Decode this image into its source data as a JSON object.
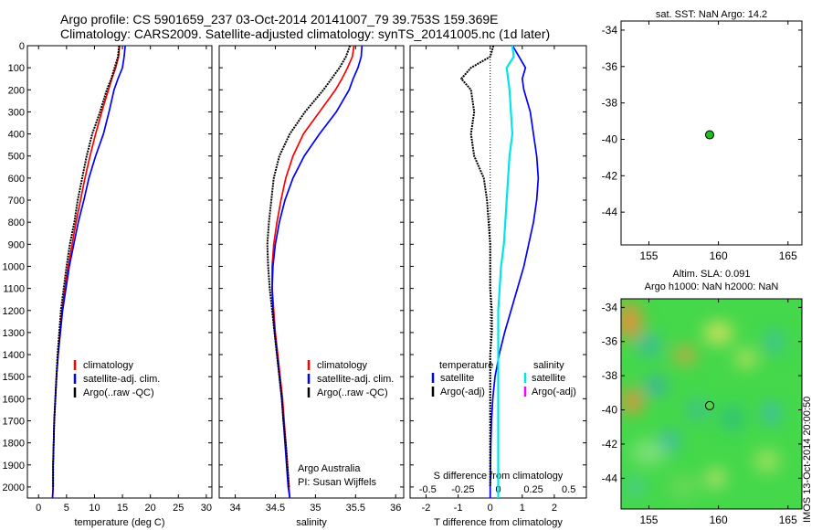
{
  "header": {
    "line1": "Argo profile: CS 5901659_237 03-Oct-2014 20141007_79 39.753S 159.369E",
    "line2": "Climatology: CARS2009. Satellite-adjusted climatology: synTS_20141005.nc (1d later)"
  },
  "colors": {
    "climatology": "#ff0000",
    "satellite": "#0000ff",
    "argo": "#000000",
    "cyan": "#00e5e5",
    "magenta": "#ff00ff",
    "dot": "#22bb22"
  },
  "chart_data": [
    {
      "type": "line",
      "xlabel": "temperature (deg C)",
      "xlim": [
        -2,
        31
      ],
      "xticks": [
        "0",
        "5",
        "10",
        "15",
        "20",
        "25",
        "30"
      ],
      "ylim": [
        0,
        2050
      ],
      "yticks": [
        "0",
        "100",
        "200",
        "300",
        "400",
        "500",
        "600",
        "700",
        "800",
        "900",
        "1000",
        "1100",
        "1200",
        "1300",
        "1400",
        "1500",
        "1600",
        "1700",
        "1800",
        "1900",
        "2000"
      ],
      "depth": [
        0,
        50,
        100,
        150,
        200,
        300,
        400,
        500,
        600,
        700,
        800,
        900,
        1000,
        1100,
        1200,
        1300,
        1400,
        1500,
        1600,
        1700,
        1800,
        1900,
        2000,
        2050
      ],
      "series": [
        {
          "name": "climatology",
          "color": "#ff0000",
          "x": [
            14.5,
            14.3,
            13.8,
            13.1,
            12.5,
            11.3,
            10.2,
            9.2,
            8.3,
            7.5,
            6.7,
            6.0,
            5.3,
            4.7,
            4.2,
            3.8,
            3.5,
            3.2,
            3.0,
            2.8,
            2.7,
            2.6,
            2.6,
            2.5
          ]
        },
        {
          "name": "satellite-adj. clim.",
          "color": "#0000ff",
          "x": [
            15.5,
            15.3,
            15.0,
            14.2,
            13.5,
            12.6,
            11.6,
            10.2,
            9.0,
            8.1,
            7.1,
            6.3,
            5.5,
            4.9,
            4.3,
            3.9,
            3.5,
            3.2,
            3.0,
            2.8,
            2.7,
            2.6,
            2.6,
            2.5
          ]
        },
        {
          "name": "Argo(..raw -QC)",
          "color": "#000000",
          "x": [
            14.4,
            14.2,
            13.6,
            13.0,
            12.2,
            11.0,
            9.6,
            8.6,
            7.8,
            7.0,
            6.4,
            5.6,
            5.0,
            4.5,
            4.0,
            3.7,
            3.4,
            3.2,
            3.0,
            2.8,
            2.7,
            2.6,
            2.6,
            null
          ]
        }
      ],
      "legend": [
        "climatology",
        "satellite-adj. clim.",
        "Argo(..raw -QC)"
      ]
    },
    {
      "type": "line",
      "xlabel": "salinity",
      "xlim": [
        33.8,
        36.1
      ],
      "xticks": [
        "34",
        "34.5",
        "35",
        "35.5",
        "36"
      ],
      "ylim": [
        0,
        2050
      ],
      "depth": [
        0,
        50,
        100,
        150,
        200,
        300,
        400,
        500,
        600,
        700,
        800,
        900,
        1000,
        1100,
        1200,
        1300,
        1400,
        1500,
        1600,
        1700,
        1800,
        1900,
        2000,
        2050
      ],
      "series": [
        {
          "name": "climatology",
          "color": "#ff0000",
          "x": [
            35.48,
            35.46,
            35.4,
            35.33,
            35.25,
            35.05,
            34.85,
            34.72,
            34.63,
            34.57,
            34.52,
            34.48,
            34.46,
            34.46,
            34.48,
            34.5,
            34.53,
            34.56,
            34.59,
            34.61,
            34.63,
            34.65,
            34.67,
            34.68
          ]
        },
        {
          "name": "satellite-adj. clim.",
          "color": "#0000ff",
          "x": [
            35.58,
            35.57,
            35.53,
            35.47,
            35.42,
            35.26,
            35.05,
            34.86,
            34.72,
            34.62,
            34.55,
            34.5,
            34.47,
            34.46,
            34.47,
            34.49,
            34.52,
            34.55,
            34.58,
            34.6,
            34.62,
            34.64,
            34.66,
            34.68
          ]
        },
        {
          "name": "Argo(..raw -QC)",
          "color": "#000000",
          "x": [
            35.43,
            35.38,
            35.3,
            35.2,
            35.1,
            34.87,
            34.68,
            34.55,
            34.48,
            34.45,
            34.42,
            34.4,
            34.41,
            34.43,
            34.46,
            34.49,
            34.52,
            34.55,
            34.58,
            34.6,
            34.63,
            34.65,
            34.67,
            null
          ]
        }
      ],
      "legend": [
        "climatology",
        "satellite-adj. clim.",
        "Argo(..raw -QC)"
      ],
      "annotation": [
        "Argo Australia",
        "PI: Susan Wijffels"
      ]
    },
    {
      "type": "line",
      "xlabel": "T difference from climatology",
      "xlabel_top": "S difference from climatology",
      "xlim": [
        -2.5,
        3
      ],
      "xticks": [
        "-2",
        "-1",
        "0",
        "1",
        "2"
      ],
      "xticks_s": [
        "-0.5",
        "-0.25",
        "0",
        "0.25",
        "0.5"
      ],
      "ylim": [
        0,
        2050
      ],
      "depth": [
        0,
        50,
        100,
        150,
        200,
        300,
        400,
        500,
        600,
        700,
        800,
        900,
        1000,
        1100,
        1200,
        1300,
        1400,
        1500,
        1600,
        1700,
        1800,
        1900,
        2000,
        2050
      ],
      "series": [
        {
          "name": "temperature satellite",
          "color": "#0000ff",
          "x": [
            0.7,
            0.9,
            1.1,
            1.0,
            1.05,
            1.25,
            1.35,
            1.45,
            1.5,
            1.45,
            1.35,
            1.2,
            1.05,
            0.85,
            0.65,
            0.45,
            0.28,
            0.15,
            0.08,
            0.04,
            0.02,
            0.01,
            0.0,
            0.0
          ]
        },
        {
          "name": "temperature Argo(-adj)",
          "color": "#000000",
          "x": [
            0.1,
            0.0,
            -0.6,
            -0.9,
            -0.6,
            -0.5,
            -0.6,
            -0.5,
            -0.2,
            -0.1,
            -0.05,
            0.0,
            0.0,
            0.0,
            0.05,
            0.05,
            0.0,
            0.0,
            0.0,
            0.0,
            0.0,
            0.0,
            0.0,
            null
          ]
        },
        {
          "name": "salinity satellite",
          "color": "#00e5e5",
          "x": [
            0.1,
            0.11,
            0.06,
            0.07,
            0.08,
            0.09,
            0.1,
            0.08,
            0.07,
            0.06,
            0.05,
            0.04,
            0.02,
            0.01,
            0.0,
            0.0,
            0.0,
            0.0,
            0.0,
            0.0,
            0.0,
            0.0,
            0.0,
            0.0
          ]
        }
      ],
      "legend_temperature": {
        "title": "temperature",
        "items": [
          "satellite",
          "Argo(-adj)"
        ]
      },
      "legend_salinity": {
        "title": "salinity",
        "items": [
          "satellite",
          "Argo(-adj)"
        ]
      }
    },
    {
      "type": "scatter",
      "title": "sat. SST: NaN Argo: 14.2",
      "xlim": [
        153,
        166
      ],
      "ylim": [
        -45.8,
        -33.5
      ],
      "xticks": [
        "155",
        "160",
        "165"
      ],
      "yticks": [
        "-34",
        "-36",
        "-38",
        "-40",
        "-42",
        "-44"
      ],
      "point": {
        "lon": 159.369,
        "lat": -39.753
      }
    },
    {
      "type": "heatmap",
      "title": "Altim. SLA: 0.091",
      "subtitle": "Argo h1000: NaN h2000: NaN",
      "xlim": [
        153,
        166
      ],
      "ylim": [
        -45.8,
        -33.5
      ],
      "xticks": [
        "155",
        "160",
        "165"
      ],
      "yticks": [
        "-34",
        "-36",
        "-38",
        "-40",
        "-42",
        "-44"
      ],
      "point": {
        "lon": 159.369,
        "lat": -39.753
      },
      "side_label": "IMOS 13-Oct-2014 20:00:50"
    }
  ]
}
